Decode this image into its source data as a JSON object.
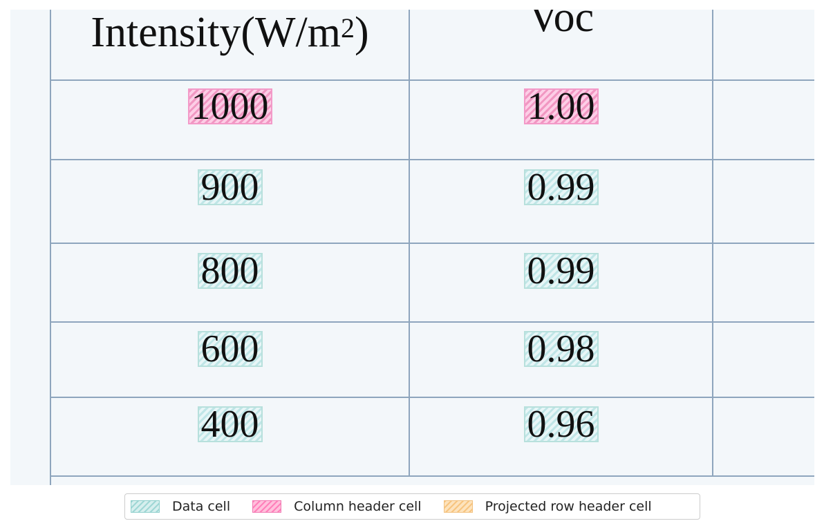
{
  "table": {
    "headers": {
      "intensity_main": "Intensity(W/m",
      "intensity_sup": "2",
      "intensity_close": ")",
      "voc": "Voc"
    },
    "rows": [
      {
        "intensity": "1000",
        "voc": "1.00"
      },
      {
        "intensity": "900",
        "voc": "0.99"
      },
      {
        "intensity": "800",
        "voc": "0.99"
      },
      {
        "intensity": "600",
        "voc": "0.98"
      },
      {
        "intensity": "400",
        "voc": "0.96"
      }
    ]
  },
  "legend": {
    "items": [
      {
        "label": "Data cell",
        "color": "#9fd7d5"
      },
      {
        "label": "Column header cell",
        "color": "#ff7fba"
      },
      {
        "label": "Projected row header cell",
        "color": "#f7c580"
      }
    ]
  }
}
